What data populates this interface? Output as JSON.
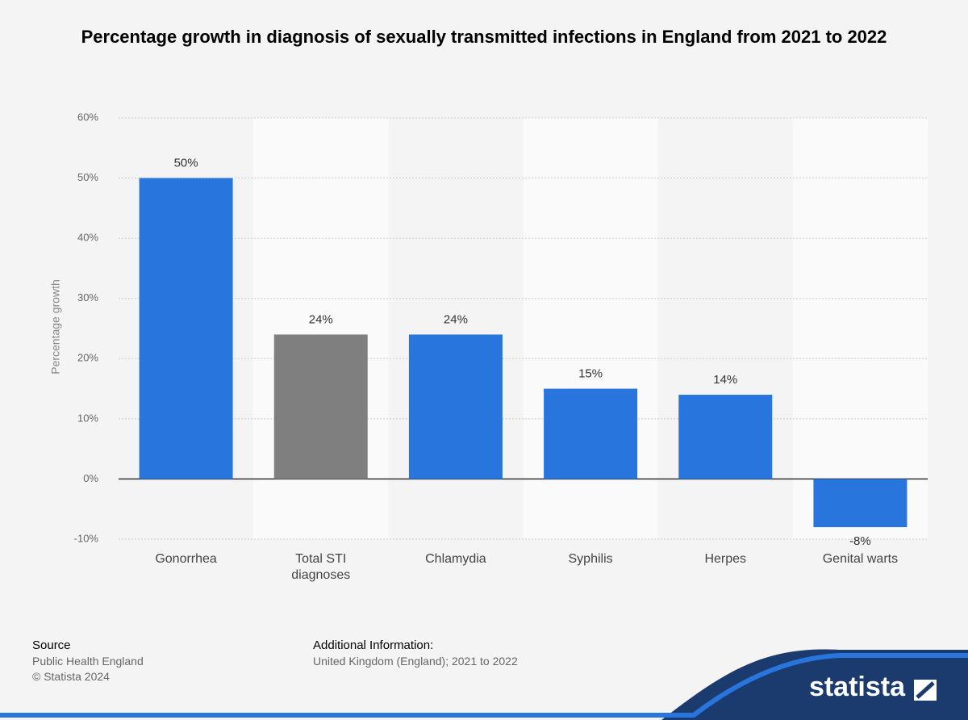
{
  "chart_data": {
    "type": "bar",
    "title": "Percentage growth in diagnosis of sexually transmitted infections in England from 2021 to 2022",
    "y_label": "Percentage growth",
    "categories": [
      "Gonorrhea",
      "Total STI diagnoses",
      "Chlamydia",
      "Syphilis",
      "Herpes",
      "Genital warts"
    ],
    "values": [
      50,
      24,
      24,
      15,
      14,
      -8
    ],
    "value_labels": [
      "50%",
      "24%",
      "24%",
      "15%",
      "14%",
      "-8%"
    ],
    "colors": [
      "#2876dd",
      "#7f7f7f",
      "#2876dd",
      "#2876dd",
      "#2876dd",
      "#2876dd"
    ],
    "ylim": [
      -10,
      60
    ],
    "yticks": [
      {
        "value": -10,
        "label": "-10%"
      },
      {
        "value": 0,
        "label": "0%"
      },
      {
        "value": 10,
        "label": "10%"
      },
      {
        "value": 20,
        "label": "20%"
      },
      {
        "value": 30,
        "label": "30%"
      },
      {
        "value": 40,
        "label": "40%"
      },
      {
        "value": 50,
        "label": "50%"
      },
      {
        "value": 60,
        "label": "60%"
      }
    ],
    "grid": true
  },
  "footer": {
    "source_title": "Source",
    "source": "Public Health England",
    "copyright": "© Statista 2024",
    "info_title": "Additional Information:",
    "info": "United Kingdom (England); 2021 to 2022",
    "logo": "statista"
  }
}
